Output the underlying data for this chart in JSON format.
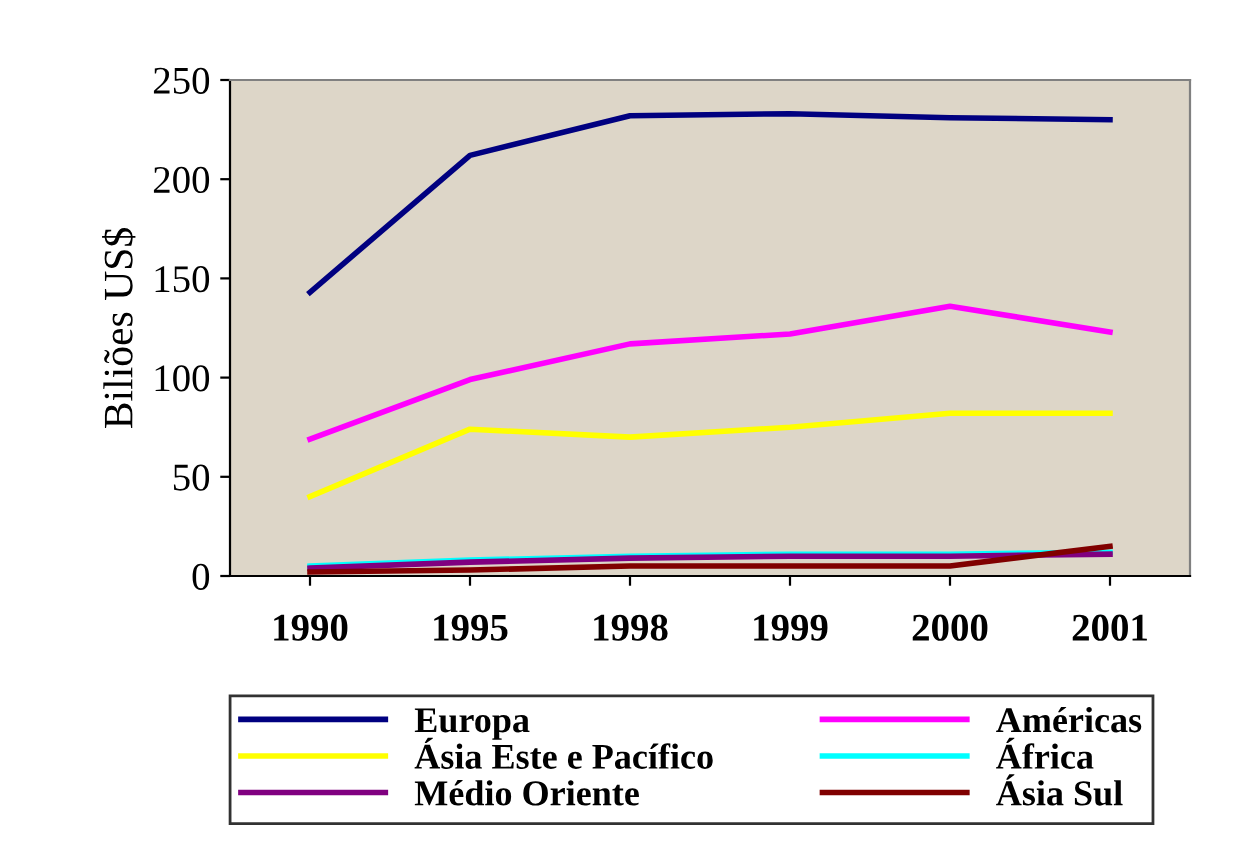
{
  "chart_data": {
    "type": "line",
    "ylabel": "Biliões US$",
    "categories": [
      "1990",
      "1995",
      "1998",
      "1999",
      "2000",
      "2001"
    ],
    "series": [
      {
        "name": "Europa",
        "color": "#000080",
        "values": [
          143,
          212,
          232,
          233,
          231,
          230
        ]
      },
      {
        "name": "Américas",
        "color": "#ff00ff",
        "values": [
          69,
          99,
          117,
          122,
          136,
          123
        ]
      },
      {
        "name": "Ásia Este e Pacífico",
        "color": "#ffff00",
        "values": [
          40,
          74,
          70,
          75,
          82,
          82
        ]
      },
      {
        "name": "África",
        "color": "#00ffff",
        "values": [
          5,
          8,
          10,
          11,
          11,
          12
        ]
      },
      {
        "name": "Médio Oriente",
        "color": "#800080",
        "values": [
          4,
          7,
          9,
          10,
          10,
          11
        ]
      },
      {
        "name": "Ásia Sul",
        "color": "#800000",
        "values": [
          2,
          3,
          5,
          5,
          5,
          15
        ]
      }
    ],
    "ylim": [
      0,
      250
    ],
    "yticks": [
      0,
      50,
      100,
      150,
      200,
      250
    ],
    "grid": false,
    "legend": "bottom",
    "marker": "none",
    "line_style": "solid"
  }
}
